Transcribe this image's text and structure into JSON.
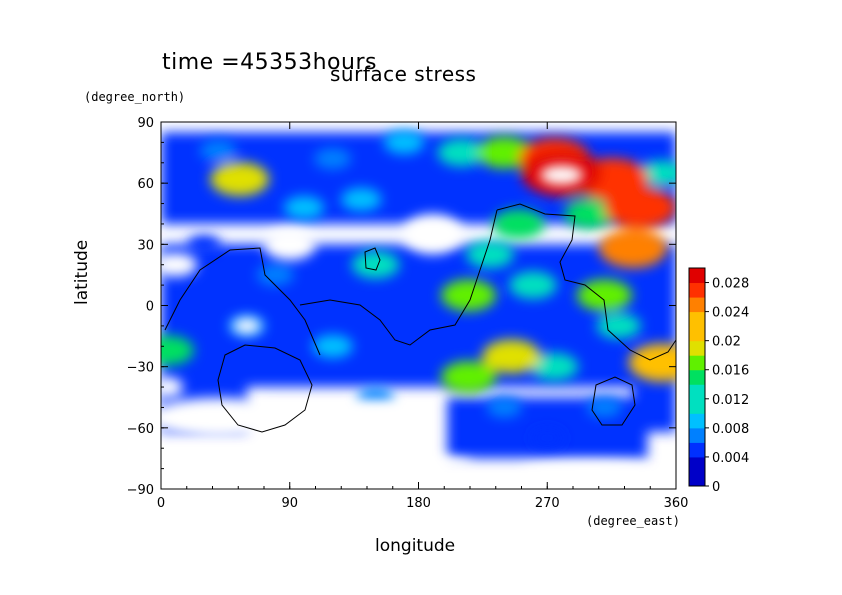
{
  "header": {
    "time_label": "time =45353hours"
  },
  "chart_data": {
    "type": "heatmap",
    "title": "surface stress",
    "xlabel": "longitude",
    "xlabel_unit": "(degree_east)",
    "ylabel": "latitude",
    "ylabel_unit": "(degree_north)",
    "xlim": [
      0,
      360
    ],
    "ylim": [
      -90,
      90
    ],
    "x_ticks": [
      0,
      90,
      180,
      270,
      360
    ],
    "y_ticks": [
      -90,
      -60,
      -30,
      0,
      30,
      60,
      90
    ],
    "colorbar": {
      "min": 0,
      "max": 0.03,
      "tick_labels": [
        "0",
        "0.004",
        "0.008",
        "0.012",
        "0.016",
        "0.02",
        "0.024",
        "0.028"
      ],
      "tick_values": [
        0,
        0.004,
        0.008,
        0.012,
        0.016,
        0.02,
        0.024,
        0.028
      ]
    },
    "grid": false,
    "features": [
      {
        "lon": 280,
        "lat": 65,
        "value": 0.03
      },
      {
        "lon": 275,
        "lat": 72,
        "value": 0.025
      },
      {
        "lon": 315,
        "lat": 62,
        "value": 0.026
      },
      {
        "lon": 335,
        "lat": 48,
        "value": 0.025
      },
      {
        "lon": 330,
        "lat": 28,
        "value": 0.023
      },
      {
        "lon": 300,
        "lat": 45,
        "value": 0.014
      },
      {
        "lon": 310,
        "lat": 5,
        "value": 0.016
      },
      {
        "lon": 240,
        "lat": 75,
        "value": 0.016
      },
      {
        "lon": 210,
        "lat": 75,
        "value": 0.012
      },
      {
        "lon": 170,
        "lat": 80,
        "value": 0.008
      },
      {
        "lon": 120,
        "lat": 72,
        "value": 0.006
      },
      {
        "lon": 55,
        "lat": 62,
        "value": 0.018
      },
      {
        "lon": 40,
        "lat": 76,
        "value": 0.006
      },
      {
        "lon": 350,
        "lat": 65,
        "value": 0.01
      },
      {
        "lon": 140,
        "lat": 52,
        "value": 0.008
      },
      {
        "lon": 100,
        "lat": 48,
        "value": 0.008
      },
      {
        "lon": 250,
        "lat": 40,
        "value": 0.014
      },
      {
        "lon": 260,
        "lat": 10,
        "value": 0.012
      },
      {
        "lon": 215,
        "lat": 5,
        "value": 0.016
      },
      {
        "lon": 230,
        "lat": 25,
        "value": 0.012
      },
      {
        "lon": 275,
        "lat": -30,
        "value": 0.012
      },
      {
        "lon": 245,
        "lat": -25,
        "value": 0.018
      },
      {
        "lon": 215,
        "lat": -35,
        "value": 0.016
      },
      {
        "lon": 350,
        "lat": -28,
        "value": 0.022
      },
      {
        "lon": 320,
        "lat": -10,
        "value": 0.01
      },
      {
        "lon": 5,
        "lat": -22,
        "value": 0.014
      },
      {
        "lon": 150,
        "lat": 20,
        "value": 0.012
      },
      {
        "lon": 60,
        "lat": -10,
        "value": 0.007
      },
      {
        "lon": 120,
        "lat": -20,
        "value": 0.008
      },
      {
        "lon": 150,
        "lat": -45,
        "value": 0.005
      },
      {
        "lon": 240,
        "lat": -50,
        "value": 0.005
      },
      {
        "lon": 270,
        "lat": -65,
        "value": 0.004
      },
      {
        "lon": 30,
        "lat": 30,
        "value": 0.004
      },
      {
        "lon": 80,
        "lat": 15,
        "value": 0.006
      },
      {
        "lon": 310,
        "lat": -50,
        "value": 0.005
      },
      {
        "lon": 20,
        "lat": -55,
        "value": 0.004
      }
    ]
  }
}
